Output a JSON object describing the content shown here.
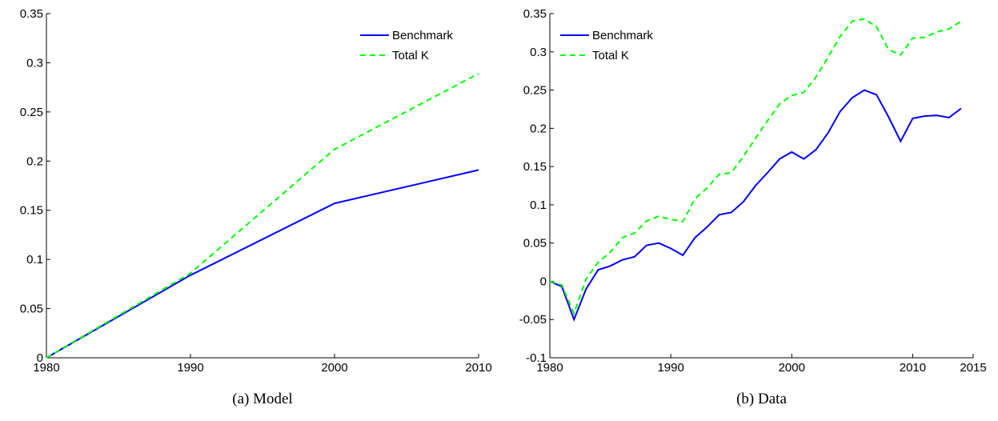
{
  "chart_data": [
    {
      "type": "line",
      "caption": "(a) Model",
      "x": [
        1980,
        1990,
        2000,
        2010
      ],
      "series": [
        {
          "name": "Benchmark",
          "color": "#0000ff",
          "linestyle": "solid",
          "values": [
            0,
            0.084,
            0.157,
            0.191
          ]
        },
        {
          "name": "Total K",
          "color": "#00ff00",
          "linestyle": "dashed",
          "values": [
            0,
            0.086,
            0.212,
            0.289
          ]
        }
      ],
      "xlim": [
        1980,
        2010
      ],
      "xticks": [
        1980,
        1990,
        2000,
        2010
      ],
      "ylim": [
        0,
        0.35
      ],
      "yticks": [
        0,
        0.05,
        0.1,
        0.15,
        0.2,
        0.25,
        0.3,
        0.35
      ],
      "legend": "upper right"
    },
    {
      "type": "line",
      "caption": "(b) Data",
      "x": [
        1980,
        1981,
        1982,
        1983,
        1984,
        1985,
        1986,
        1987,
        1988,
        1989,
        1990,
        1991,
        1992,
        1993,
        1994,
        1995,
        1996,
        1997,
        1998,
        1999,
        2000,
        2001,
        2002,
        2003,
        2004,
        2005,
        2006,
        2007,
        2008,
        2009,
        2010,
        2011,
        2012,
        2013,
        2014
      ],
      "series": [
        {
          "name": "Benchmark",
          "color": "#0000ff",
          "linestyle": "solid",
          "values": [
            0,
            -0.007,
            -0.05,
            -0.01,
            0.015,
            0.02,
            0.028,
            0.032,
            0.047,
            0.05,
            0.043,
            0.034,
            0.057,
            0.071,
            0.087,
            0.09,
            0.104,
            0.125,
            0.142,
            0.16,
            0.169,
            0.16,
            0.172,
            0.194,
            0.222,
            0.24,
            0.25,
            0.244,
            0.215,
            0.183,
            0.213,
            0.216,
            0.217,
            0.214,
            0.226
          ]
        },
        {
          "name": "Total K",
          "color": "#00ff00",
          "linestyle": "dashed",
          "values": [
            0,
            -0.005,
            -0.042,
            0.003,
            0.025,
            0.038,
            0.057,
            0.063,
            0.079,
            0.085,
            0.081,
            0.078,
            0.108,
            0.122,
            0.14,
            0.142,
            0.163,
            0.187,
            0.21,
            0.232,
            0.243,
            0.247,
            0.267,
            0.293,
            0.32,
            0.34,
            0.343,
            0.333,
            0.303,
            0.296,
            0.318,
            0.319,
            0.326,
            0.33,
            0.34
          ]
        }
      ],
      "xlim": [
        1980,
        2015
      ],
      "xticks": [
        1980,
        1990,
        2000,
        2010,
        2015
      ],
      "ylim": [
        -0.1,
        0.35
      ],
      "yticks": [
        -0.1,
        -0.05,
        0,
        0.05,
        0.1,
        0.15,
        0.2,
        0.25,
        0.3,
        0.35
      ],
      "legend": "upper left"
    }
  ]
}
